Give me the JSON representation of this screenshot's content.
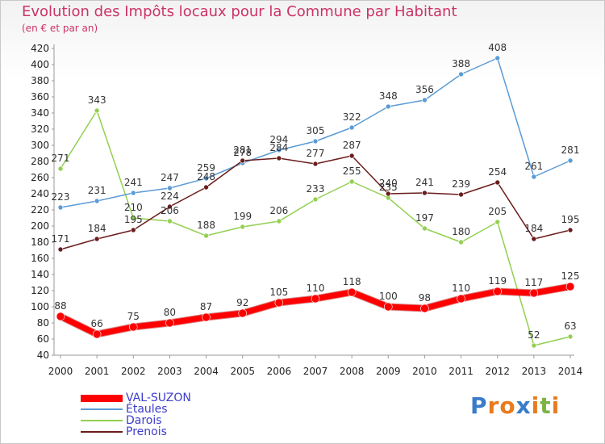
{
  "title": "Evolution des Impôts locaux pour la Commune par Habitant",
  "subtitle": "(en € et par an)",
  "logo": {
    "text": "Proxiti",
    "letters": [
      "P",
      "r",
      "o",
      "x",
      "i",
      "t",
      "i"
    ],
    "colors": [
      "#3a7cc9",
      "#e87b1e",
      "#e87b1e",
      "#3a7cc9",
      "#e87b1e",
      "#7cb342",
      "#e87b1e"
    ]
  },
  "chart_data": {
    "type": "line",
    "title": "Evolution des Impôts locaux pour la Commune par Habitant",
    "subtitle": "(en € et par an)",
    "xlabel": "",
    "ylabel": "",
    "x": [
      2000,
      2001,
      2002,
      2003,
      2004,
      2005,
      2006,
      2007,
      2008,
      2009,
      2010,
      2011,
      2012,
      2013,
      2014
    ],
    "x_tick_labels": [
      "2000",
      "2001",
      "2002",
      "2003",
      "2004",
      "2005",
      "2006",
      "2007",
      "2008",
      "2009",
      "2010",
      "2011",
      "2012",
      "2013",
      "2014"
    ],
    "ylim": [
      40,
      420
    ],
    "y_ticks": [
      40,
      60,
      80,
      100,
      120,
      140,
      160,
      180,
      200,
      220,
      240,
      260,
      280,
      300,
      320,
      340,
      360,
      380,
      400,
      420
    ],
    "grid": false,
    "legend_position": "bottom-left",
    "series": [
      {
        "name": "VAL-SUZON",
        "color": "#ff0000",
        "width": 7,
        "values": [
          88,
          66,
          75,
          80,
          87,
          92,
          105,
          110,
          118,
          100,
          98,
          110,
          119,
          117,
          125
        ],
        "labels": [
          "88",
          "66",
          "75",
          "80",
          "87",
          "92",
          "105",
          "110",
          "118",
          "100",
          "98",
          "110",
          "119",
          "117",
          "125"
        ]
      },
      {
        "name": "Étaules",
        "color": "#5b9bd5",
        "width": 1.5,
        "values": [
          223,
          231,
          241,
          247,
          259,
          278,
          294,
          305,
          322,
          348,
          356,
          388,
          408,
          261,
          281
        ],
        "labels": [
          "223",
          "231",
          "241",
          "247",
          "259",
          "278",
          "294",
          "305",
          "322",
          "348",
          "356",
          "388",
          "408",
          "261",
          "281"
        ]
      },
      {
        "name": "Darois",
        "color": "#92d050",
        "width": 1.5,
        "values": [
          271,
          343,
          210,
          206,
          188,
          199,
          206,
          233,
          255,
          235,
          197,
          180,
          205,
          52,
          63
        ],
        "labels": [
          "271",
          "343",
          "210",
          "206",
          "188",
          "199",
          "206",
          "233",
          "255",
          "235",
          "197",
          "180",
          "205",
          "52",
          "63"
        ]
      },
      {
        "name": "Prenois",
        "color": "#6b1c1c",
        "width": 1.5,
        "values": [
          171,
          184,
          195,
          224,
          248,
          281,
          284,
          277,
          287,
          240,
          241,
          239,
          254,
          184,
          195
        ],
        "labels": [
          "171",
          "184",
          "195",
          "224",
          "248",
          "281",
          "284",
          "277",
          "287",
          "240",
          "241",
          "239",
          "254",
          "184",
          "195"
        ]
      }
    ]
  }
}
